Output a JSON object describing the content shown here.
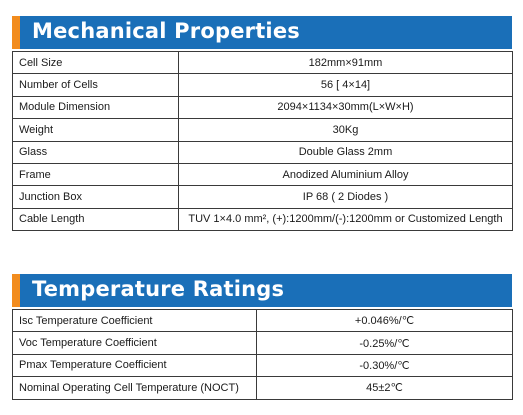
{
  "mechanical": {
    "title": "Mechanical Properties",
    "rows": [
      {
        "label": "Cell Size",
        "value": "182mm×91mm"
      },
      {
        "label": "Number of Cells",
        "value": "56 [ 4×14]"
      },
      {
        "label": "Module Dimension",
        "value": "2094×1134×30mm(L×W×H)"
      },
      {
        "label": "Weight",
        "value": "30Kg"
      },
      {
        "label": "Glass",
        "value": "Double Glass 2mm"
      },
      {
        "label": "Frame",
        "value": "Anodized Aluminium Alloy"
      },
      {
        "label": "Junction Box",
        "value": "IP 68 ( 2 Diodes )"
      },
      {
        "label": "Cable Length",
        "value": "TUV 1×4.0 mm², (+):1200mm/(-):1200mm or Customized Length"
      }
    ]
  },
  "temperature": {
    "title": "Temperature Ratings",
    "rows": [
      {
        "label": "Isc Temperature Coefficient",
        "value": "+0.046%/℃"
      },
      {
        "label": "Voc Temperature Coefficient",
        "value": "-0.25%/℃"
      },
      {
        "label": "Pmax Temperature Coefficient",
        "value": "-0.30%/℃"
      },
      {
        "label": "Nominal Operating Cell Temperature (NOCT)",
        "value": "45±2℃"
      }
    ]
  },
  "colors": {
    "header_blue": "#1a6fb8",
    "header_accent_orange": "#f28c1e"
  }
}
